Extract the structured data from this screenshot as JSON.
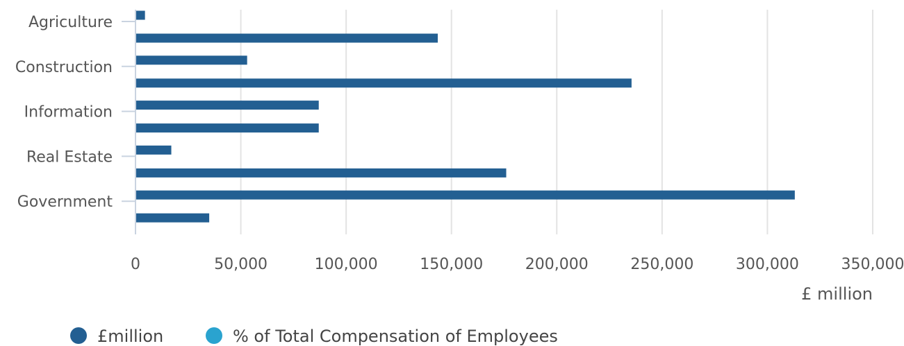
{
  "chart_data": {
    "type": "bar",
    "orientation": "horizontal",
    "categories": [
      "Agriculture",
      "Construction",
      "Information",
      "Real Estate",
      "Government"
    ],
    "series": [
      {
        "name": "£million",
        "color": "#235f92",
        "values": [
          4500,
          53000,
          87000,
          17000,
          313000
        ]
      },
      {
        "name": "% of Total Compensation of Employees",
        "color": "#2aa3cf",
        "values": [
          143500,
          235500,
          87000,
          176000,
          35000
        ]
      }
    ],
    "bar_color": "#235f92",
    "xlim": [
      0,
      350000
    ],
    "x_ticks": [
      0,
      50000,
      100000,
      150000,
      200000,
      250000,
      300000,
      350000
    ],
    "x_tick_labels": [
      "0",
      "50,000",
      "100,000",
      "150,000",
      "200,000",
      "250,000",
      "300,000",
      "350,000"
    ],
    "xlabel": "£ million",
    "grid": true,
    "legend_position": "bottom-left"
  }
}
